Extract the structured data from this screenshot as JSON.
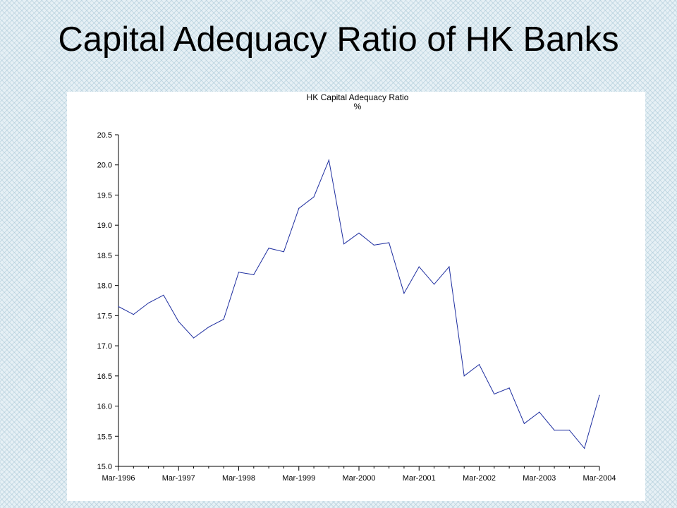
{
  "slide": {
    "title": "Capital Adequacy Ratio of HK Banks"
  },
  "chart_data": {
    "type": "line",
    "title": "HK Capital Adequacy Ratio",
    "ylabel": "%",
    "xlabel": "",
    "ylim": [
      15.0,
      20.5
    ],
    "yticks": [
      15.0,
      15.5,
      16.0,
      16.5,
      17.0,
      17.5,
      18.0,
      18.5,
      19.0,
      19.5,
      20.0,
      20.5
    ],
    "xtick_labels": [
      "Mar-1996",
      "Mar-1997",
      "Mar-1998",
      "Mar-1999",
      "Mar-2000",
      "Mar-2001",
      "Mar-2002",
      "Mar-2003",
      "Mar-2004"
    ],
    "grid": false,
    "line_color": "#1f2fa0",
    "x": [
      "Mar-1996",
      "Jun-1996",
      "Sep-1996",
      "Dec-1996",
      "Mar-1997",
      "Jun-1997",
      "Sep-1997",
      "Dec-1997",
      "Mar-1998",
      "Jun-1998",
      "Sep-1998",
      "Dec-1998",
      "Mar-1999",
      "Jun-1999",
      "Sep-1999",
      "Dec-1999",
      "Mar-2000",
      "Jun-2000",
      "Sep-2000",
      "Dec-2000",
      "Mar-2001",
      "Jun-2001",
      "Sep-2001",
      "Dec-2001",
      "Mar-2002",
      "Jun-2002",
      "Sep-2002",
      "Dec-2002",
      "Mar-2003",
      "Jun-2003",
      "Sep-2003",
      "Dec-2003",
      "Mar-2004"
    ],
    "series": [
      {
        "values": [
          17.65,
          17.52,
          17.71,
          17.84,
          17.4,
          17.13,
          17.31,
          17.44,
          18.22,
          18.18,
          18.62,
          18.56,
          19.28,
          19.47,
          20.08,
          18.69,
          18.87,
          18.67,
          18.71,
          17.87,
          18.31,
          18.02,
          18.31,
          16.5,
          16.69,
          16.2,
          16.3,
          15.71,
          15.9,
          15.6,
          15.6,
          15.3,
          16.18
        ]
      }
    ]
  }
}
